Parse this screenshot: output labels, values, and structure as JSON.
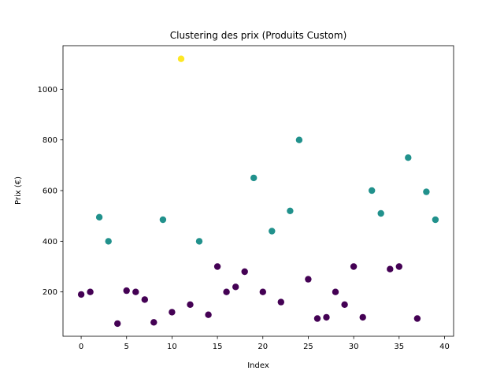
{
  "chart_data": {
    "type": "scatter",
    "title": "Clustering des prix (Produits Custom)",
    "xlabel": "Index",
    "ylabel": "Prix (€)",
    "xlim": [
      -2,
      41
    ],
    "ylim": [
      25,
      1172
    ],
    "xticks": [
      0,
      5,
      10,
      15,
      20,
      25,
      30,
      35,
      40
    ],
    "yticks": [
      200,
      400,
      600,
      800,
      1000
    ],
    "grid": false,
    "legend": "none",
    "cluster_colors": [
      "#440154",
      "#21918c",
      "#fde725"
    ],
    "x": [
      0,
      1,
      2,
      3,
      4,
      5,
      6,
      7,
      8,
      9,
      10,
      11,
      12,
      13,
      14,
      15,
      16,
      17,
      18,
      19,
      20,
      21,
      22,
      23,
      24,
      25,
      26,
      27,
      28,
      29,
      30,
      31,
      32,
      33,
      34,
      35,
      36,
      37,
      38,
      39
    ],
    "y": [
      190,
      200,
      495,
      400,
      75,
      205,
      200,
      170,
      80,
      485,
      120,
      1120,
      150,
      400,
      110,
      300,
      200,
      220,
      280,
      650,
      200,
      440,
      160,
      520,
      800,
      250,
      95,
      100,
      200,
      150,
      300,
      100,
      600,
      510,
      290,
      300,
      730,
      95,
      595,
      485
    ],
    "cluster": [
      0,
      0,
      1,
      1,
      0,
      0,
      0,
      0,
      0,
      1,
      0,
      2,
      0,
      1,
      0,
      0,
      0,
      0,
      0,
      1,
      0,
      1,
      0,
      1,
      1,
      0,
      0,
      0,
      0,
      0,
      0,
      0,
      1,
      1,
      0,
      0,
      1,
      0,
      1,
      1
    ]
  }
}
